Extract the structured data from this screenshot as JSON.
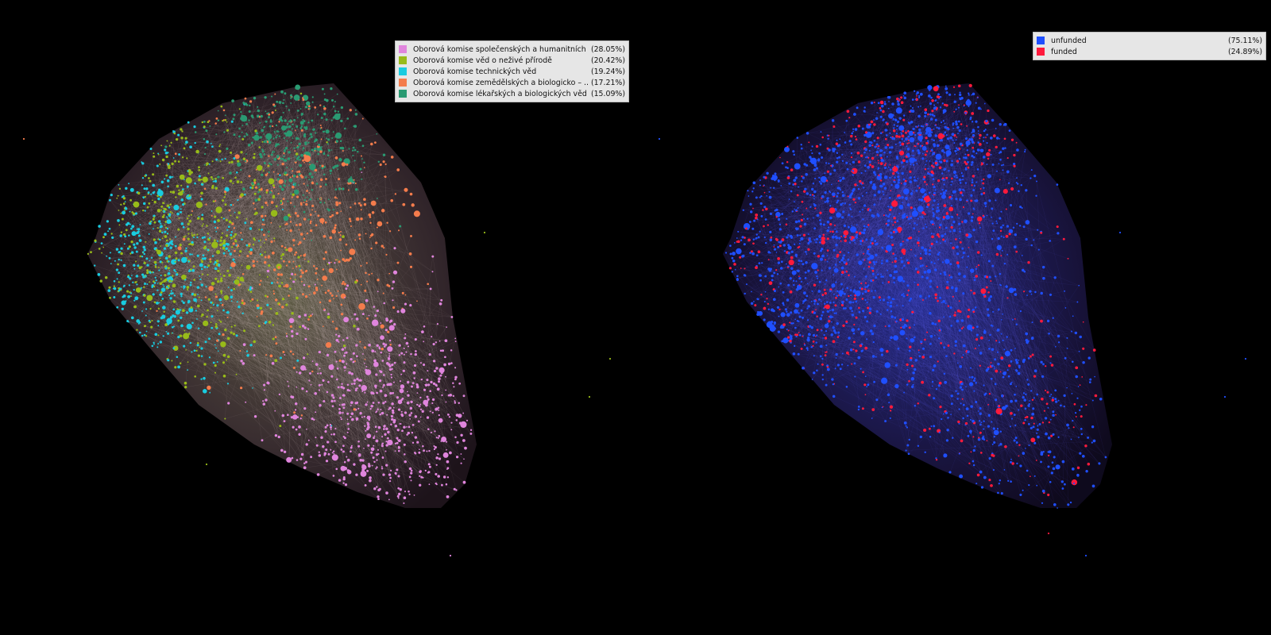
{
  "left_panel": {
    "legend": [
      {
        "label": "Oborová komise společenských a humanitních ...",
        "percent": "(28.05%)",
        "color": "#e085dd",
        "share": 0.2805
      },
      {
        "label": "Oborová komise věd o neživé přírodě",
        "percent": "(20.42%)",
        "color": "#98bb19",
        "share": 0.2042
      },
      {
        "label": "Oborová komise technických věd",
        "percent": "(19.24%)",
        "color": "#19cce0",
        "share": 0.1924
      },
      {
        "label": "Oborová komise zemědělských a biologicko – ...",
        "percent": "(17.21%)",
        "color": "#f47c4c",
        "share": 0.1721
      },
      {
        "label": "Oborová komise lékařských a biologických věd",
        "percent": "(15.09%)",
        "color": "#2a9a72",
        "share": 0.1509
      }
    ]
  },
  "right_panel": {
    "legend": [
      {
        "label": "unfunded",
        "percent": "(75.11%)",
        "color": "#1f4fff",
        "share": 0.7511
      },
      {
        "label": "funded",
        "percent": "(24.89%)",
        "color": "#ff1a3c",
        "share": 0.2489
      }
    ]
  },
  "background_color": "#000000"
}
